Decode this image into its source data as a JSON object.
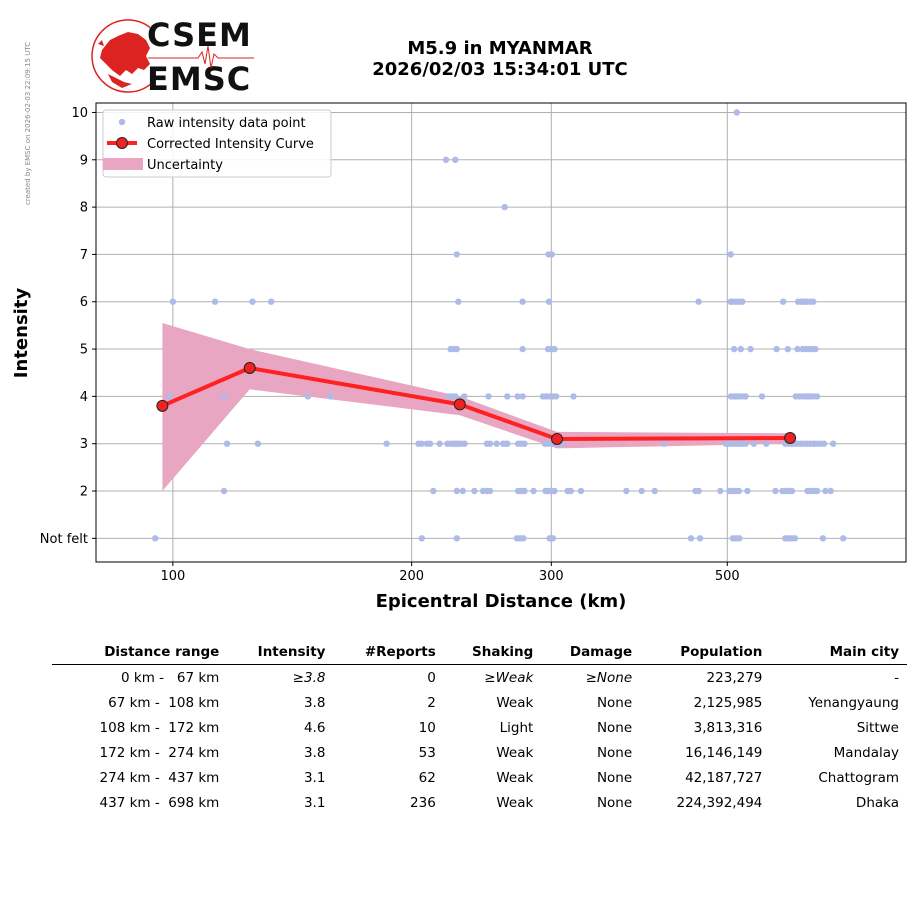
{
  "side_note": "created by EMSC on 2026-02-03 22:09:15 UTC",
  "logo": {
    "line1": "CSEM",
    "line2": "EMSC"
  },
  "header": {
    "title_line1": "M5.9 in MYANMAR",
    "title_line2": "2026/02/03 15:34:01 UTC"
  },
  "colors": {
    "raw": "#aebbe8",
    "curve": "#ff2020",
    "marker": "#ee2222",
    "band": "#e8a6c2",
    "grid": "#b0b0b0"
  },
  "chart_data": {
    "type": "scatter",
    "xlabel": "Epicentral Distance (km)",
    "ylabel": "Intensity",
    "xscale": "log",
    "xlim": [
      80,
      840
    ],
    "ylim": [
      0.5,
      10.2
    ],
    "xticks": [
      {
        "value": 100,
        "label": "100"
      },
      {
        "value": 200,
        "label": "200"
      },
      {
        "value": 300,
        "label": "300"
      },
      {
        "value": 500,
        "label": "500"
      }
    ],
    "yticks": [
      {
        "value": 1,
        "label": "Not felt"
      },
      {
        "value": 2,
        "label": "2"
      },
      {
        "value": 3,
        "label": "3"
      },
      {
        "value": 4,
        "label": "4"
      },
      {
        "value": 5,
        "label": "5"
      },
      {
        "value": 6,
        "label": "6"
      },
      {
        "value": 7,
        "label": "7"
      },
      {
        "value": 8,
        "label": "8"
      },
      {
        "value": 9,
        "label": "9"
      },
      {
        "value": 10,
        "label": "10"
      }
    ],
    "grid": true,
    "legend_position": "top-left",
    "legend": [
      "Raw intensity data point",
      "Corrected Intensity Curve",
      "Uncertainty"
    ],
    "curve": {
      "x": [
        97,
        125,
        230,
        305,
        600
      ],
      "y": [
        3.8,
        4.6,
        3.83,
        3.1,
        3.12
      ]
    },
    "uncertainty": {
      "x": [
        97,
        125,
        230,
        305,
        600
      ],
      "upper": [
        5.55,
        5.0,
        4.0,
        3.25,
        3.22
      ],
      "lower": [
        2.0,
        4.15,
        3.6,
        2.9,
        3.0
      ]
    },
    "raw_points": [
      [
        10,
        [
          [
            514,
            1
          ]
        ]
      ],
      [
        9,
        [
          [
            221,
            1
          ],
          [
            227,
            1
          ]
        ]
      ],
      [
        8,
        [
          [
            262,
            1
          ]
        ]
      ],
      [
        7,
        [
          [
            228,
            1
          ],
          [
            299,
            2
          ],
          [
            505,
            1
          ]
        ]
      ],
      [
        6,
        [
          [
            100,
            1
          ],
          [
            113,
            1
          ],
          [
            126,
            1
          ],
          [
            133,
            1
          ],
          [
            229,
            1
          ],
          [
            276,
            1
          ],
          [
            298,
            1
          ],
          [
            460,
            1
          ],
          [
            505,
            1
          ],
          [
            515,
            4
          ],
          [
            588,
            1
          ],
          [
            620,
            3
          ],
          [
            633,
            4
          ]
        ]
      ],
      [
        5,
        [
          [
            225,
            2
          ],
          [
            228,
            1
          ],
          [
            276,
            1
          ],
          [
            300,
            3
          ],
          [
            510,
            1
          ],
          [
            520,
            1
          ],
          [
            535,
            1
          ],
          [
            577,
            1
          ],
          [
            596,
            1
          ],
          [
            613,
            1
          ],
          [
            625,
            2
          ],
          [
            640,
            3
          ]
        ]
      ],
      [
        4,
        [
          [
            99,
            1
          ],
          [
            116,
            1
          ],
          [
            148,
            1
          ],
          [
            158,
            1
          ],
          [
            225,
            3
          ],
          [
            233,
            1
          ],
          [
            250,
            1
          ],
          [
            264,
            1
          ],
          [
            272,
            1
          ],
          [
            276,
            1
          ],
          [
            294,
            2
          ],
          [
            300,
            4
          ],
          [
            320,
            1
          ],
          [
            510,
            3
          ],
          [
            520,
            4
          ],
          [
            553,
            1
          ],
          [
            610,
            1
          ],
          [
            625,
            4
          ],
          [
            640,
            4
          ]
        ]
      ],
      [
        3,
        [
          [
            117,
            1
          ],
          [
            128,
            1
          ],
          [
            186,
            1
          ],
          [
            205,
            2
          ],
          [
            210,
            2
          ],
          [
            217,
            1
          ],
          [
            225,
            4
          ],
          [
            230,
            4
          ],
          [
            250,
            2
          ],
          [
            256,
            1
          ],
          [
            262,
            2
          ],
          [
            264,
            1
          ],
          [
            275,
            3
          ],
          [
            300,
            5
          ],
          [
            310,
            1
          ],
          [
            416,
            1
          ],
          [
            505,
            4
          ],
          [
            520,
            4
          ],
          [
            540,
            1
          ],
          [
            560,
            1
          ],
          [
            600,
            4
          ],
          [
            628,
            6
          ],
          [
            650,
            3
          ],
          [
            662,
            1
          ],
          [
            680,
            1
          ]
        ]
      ],
      [
        2,
        [
          [
            116,
            1
          ],
          [
            213,
            1
          ],
          [
            228,
            1
          ],
          [
            232,
            1
          ],
          [
            240,
            1
          ],
          [
            246,
            1
          ],
          [
            250,
            2
          ],
          [
            275,
            3
          ],
          [
            285,
            1
          ],
          [
            295,
            1
          ],
          [
            300,
            3
          ],
          [
            316,
            2
          ],
          [
            327,
            1
          ],
          [
            373,
            1
          ],
          [
            390,
            1
          ],
          [
            405,
            1
          ],
          [
            458,
            2
          ],
          [
            490,
            1
          ],
          [
            510,
            4
          ],
          [
            530,
            1
          ],
          [
            575,
            1
          ],
          [
            595,
            4
          ],
          [
            640,
            4
          ],
          [
            665,
            1
          ],
          [
            675,
            1
          ]
        ]
      ],
      [
        1,
        [
          [
            95,
            1
          ],
          [
            206,
            1
          ],
          [
            228,
            1
          ],
          [
            274,
            3
          ],
          [
            300,
            2
          ],
          [
            450,
            1
          ],
          [
            462,
            1
          ],
          [
            513,
            3
          ],
          [
            600,
            4
          ],
          [
            660,
            1
          ],
          [
            700,
            1
          ]
        ]
      ]
    ]
  },
  "table": {
    "headers": [
      "Distance range",
      "Intensity",
      "#Reports",
      "Shaking",
      "Damage",
      "Population",
      "Main city"
    ],
    "rows": [
      [
        "0 km -   67 km",
        "≥3.8",
        "0",
        "≥Weak",
        "≥None",
        "223,279",
        "-"
      ],
      [
        "67 km -  108 km",
        "3.8",
        "2",
        "Weak",
        "None",
        "2,125,985",
        "Yenangyaung"
      ],
      [
        "108 km -  172 km",
        "4.6",
        "10",
        "Light",
        "None",
        "3,813,316",
        "Sittwe"
      ],
      [
        "172 km -  274 km",
        "3.8",
        "53",
        "Weak",
        "None",
        "16,146,149",
        "Mandalay"
      ],
      [
        "274 km -  437 km",
        "3.1",
        "62",
        "Weak",
        "None",
        "42,187,727",
        "Chattogram"
      ],
      [
        "437 km -  698 km",
        "3.1",
        "236",
        "Weak",
        "None",
        "224,392,494",
        "Dhaka"
      ]
    ]
  }
}
